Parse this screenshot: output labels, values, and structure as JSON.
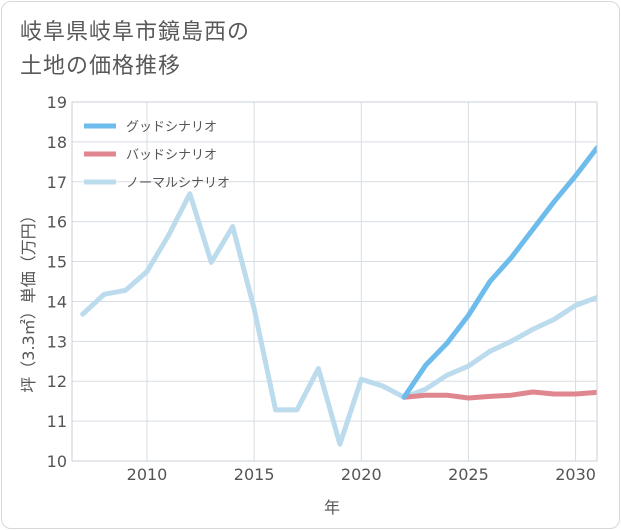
{
  "title": {
    "line1": "岐阜県岐阜市鏡島西の",
    "line2": "土地の価格推移"
  },
  "chart_data": {
    "type": "line",
    "xlabel": "年",
    "ylabel": "坪（3.3㎡）単価（万円）",
    "xlim": [
      2006.5,
      2031
    ],
    "ylim": [
      10,
      19
    ],
    "xticks": [
      2010,
      2015,
      2020,
      2025,
      2030
    ],
    "yticks": [
      10,
      11,
      12,
      13,
      14,
      15,
      16,
      17,
      18,
      19
    ],
    "grid": true,
    "legend_position": "top-left",
    "series": [
      {
        "name": "グッドシナリオ",
        "color": "#6dbcec",
        "x": [
          2022,
          2023,
          2024,
          2025,
          2026,
          2027,
          2028,
          2029,
          2030,
          2031
        ],
        "y": [
          11.6,
          12.4,
          12.95,
          13.65,
          14.5,
          15.1,
          15.8,
          16.5,
          17.15,
          17.85
        ]
      },
      {
        "name": "バッドシナリオ",
        "color": "#e0868f",
        "x": [
          2022,
          2023,
          2024,
          2025,
          2026,
          2027,
          2028,
          2029,
          2030,
          2031
        ],
        "y": [
          11.6,
          11.65,
          11.65,
          11.58,
          11.62,
          11.65,
          11.73,
          11.68,
          11.68,
          11.72
        ]
      },
      {
        "name": "ノーマルシナリオ",
        "color": "#bcdcee",
        "x": [
          2007,
          2008,
          2009,
          2010,
          2011,
          2012,
          2013,
          2014,
          2015,
          2016,
          2017,
          2018,
          2019,
          2020,
          2021,
          2022,
          2023,
          2024,
          2025,
          2026,
          2027,
          2028,
          2029,
          2030,
          2031
        ],
        "y": [
          13.68,
          14.18,
          14.28,
          14.75,
          15.65,
          16.7,
          14.98,
          15.88,
          13.82,
          11.28,
          11.28,
          12.32,
          10.42,
          12.05,
          11.88,
          11.6,
          11.8,
          12.15,
          12.38,
          12.75,
          13.0,
          13.3,
          13.55,
          13.9,
          14.1
        ]
      }
    ]
  }
}
